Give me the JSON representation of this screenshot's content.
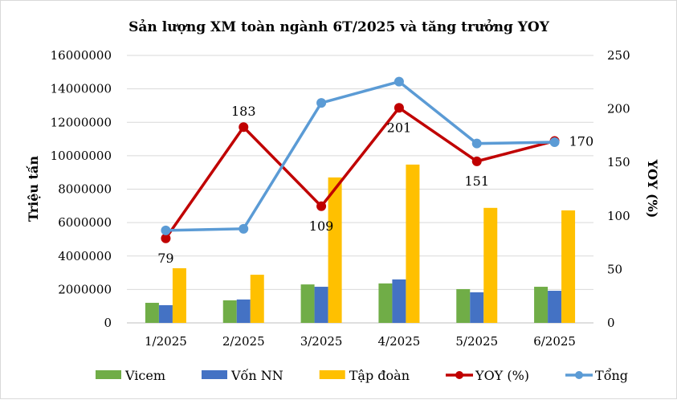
{
  "chart_data": {
    "type": "bar",
    "title": "Sản lượng XM toàn ngành 6T/2025 và tăng trưởng YOY",
    "ylabel": "Triệu tấn",
    "y2label": "YOY (%)",
    "xlabel": "",
    "ylim": [
      0,
      16000000
    ],
    "y2lim": [
      0,
      250
    ],
    "yticks": [
      "0",
      "2000000",
      "4000000",
      "6000000",
      "8000000",
      "10000000",
      "12000000",
      "14000000",
      "16000000"
    ],
    "y2ticks": [
      "0",
      "50",
      "100",
      "150",
      "200",
      "250"
    ],
    "categories": [
      "1/2025",
      "2/2025",
      "3/2025",
      "4/2025",
      "5/2025",
      "6/2025"
    ],
    "grid": true,
    "legend_position": "bottom",
    "series": [
      {
        "name": "Vicem",
        "type": "bar",
        "color": "#70ad47",
        "values": [
          1200000,
          1350000,
          2300000,
          2360000,
          2020000,
          2160000
        ]
      },
      {
        "name": "Vốn NN",
        "type": "bar",
        "color": "#4472c4",
        "values": [
          1060000,
          1400000,
          2160000,
          2600000,
          1830000,
          1920000
        ]
      },
      {
        "name": "Tập đoàn",
        "type": "bar",
        "color": "#ffc000",
        "values": [
          3270000,
          2880000,
          8700000,
          9470000,
          6880000,
          6730000
        ]
      },
      {
        "name": "YOY (%)",
        "type": "line",
        "axis": "right",
        "color": "#c00000",
        "values": [
          79,
          183,
          109,
          201,
          151,
          170
        ],
        "labels": [
          "79",
          "183",
          "109",
          "201",
          "151",
          "170"
        ],
        "label_positions": [
          "below",
          "above",
          "below",
          "below",
          "below",
          "right"
        ]
      },
      {
        "name": "Tổng",
        "type": "line",
        "axis": "left",
        "color": "#5b9bd5",
        "values": [
          5530000,
          5630000,
          13160000,
          14430000,
          10730000,
          10810000
        ]
      }
    ]
  }
}
